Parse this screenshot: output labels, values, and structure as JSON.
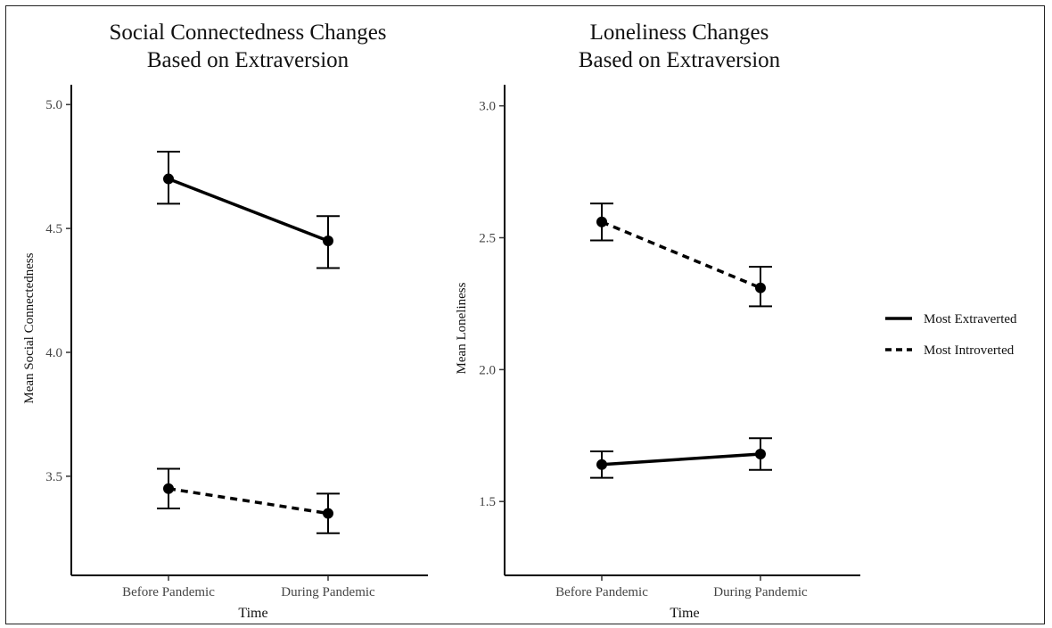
{
  "chart_data": [
    {
      "type": "line",
      "title_line1": "Social Connectedness Changes",
      "title_line2": "Based on Extraversion",
      "xlabel": "Time",
      "ylabel": "Mean Social Connectedness",
      "categories": [
        "Before Pandemic",
        "During Pandemic"
      ],
      "ylim": [
        3.1,
        5.08
      ],
      "yticks": [
        "3.5",
        "4.0",
        "4.5",
        "5.0"
      ],
      "series": [
        {
          "name": "Most Extraverted",
          "style": "solid",
          "values": [
            4.7,
            4.45
          ],
          "lower": [
            4.6,
            4.34
          ],
          "upper": [
            4.81,
            4.55
          ]
        },
        {
          "name": "Most Introverted",
          "style": "dashed",
          "values": [
            3.45,
            3.35
          ],
          "lower": [
            3.37,
            3.27
          ],
          "upper": [
            3.53,
            3.43
          ]
        }
      ]
    },
    {
      "type": "line",
      "title_line1": "Loneliness Changes",
      "title_line2": "Based on Extraversion",
      "xlabel": "Time",
      "ylabel": "Mean Loneliness",
      "categories": [
        "Before Pandemic",
        "During Pandemic"
      ],
      "ylim": [
        1.22,
        3.08
      ],
      "yticks": [
        "1.5",
        "2.0",
        "2.5",
        "3.0"
      ],
      "series": [
        {
          "name": "Most Extraverted",
          "style": "solid",
          "values": [
            1.64,
            1.68
          ],
          "lower": [
            1.59,
            1.62
          ],
          "upper": [
            1.69,
            1.74
          ]
        },
        {
          "name": "Most Introverted",
          "style": "dashed",
          "values": [
            2.56,
            2.31
          ],
          "lower": [
            2.49,
            2.24
          ],
          "upper": [
            2.63,
            2.39
          ]
        }
      ]
    }
  ],
  "legend": {
    "position": "right",
    "items": [
      {
        "label": "Most Extraverted",
        "style": "solid"
      },
      {
        "label": "Most Introverted",
        "style": "dashed"
      }
    ]
  }
}
